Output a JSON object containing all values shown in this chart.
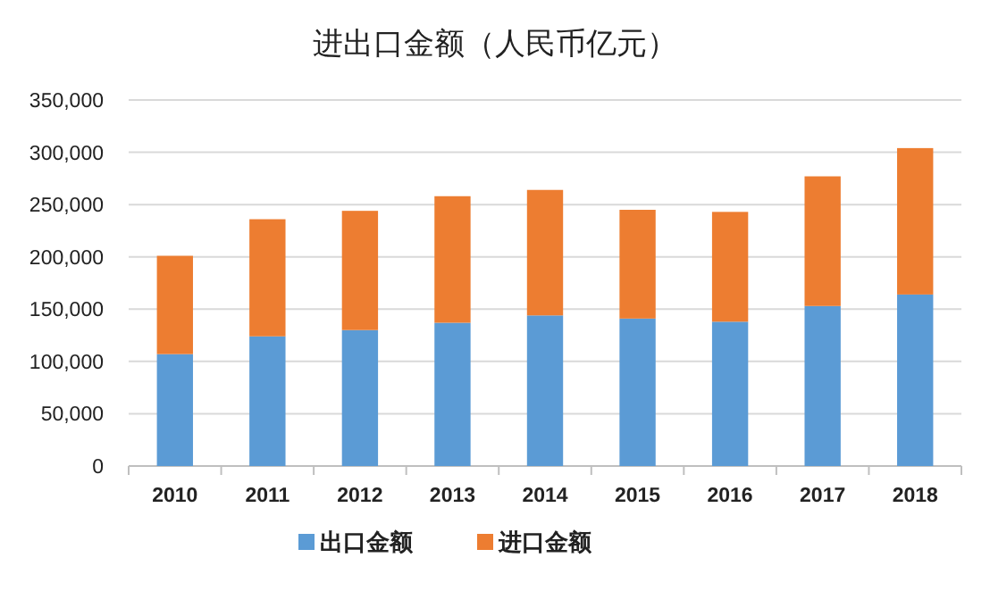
{
  "chart_data": {
    "type": "bar",
    "title": "进出口金额（人民币亿元）",
    "stacked": true,
    "categories": [
      "2010",
      "2011",
      "2012",
      "2013",
      "2014",
      "2015",
      "2016",
      "2017",
      "2018"
    ],
    "series": [
      {
        "name": "出口金额",
        "color": "#5b9bd5",
        "values": [
          107000,
          124000,
          130000,
          137000,
          144000,
          141000,
          138000,
          153000,
          164000
        ]
      },
      {
        "name": "进口金额",
        "color": "#ed7d31",
        "values": [
          94000,
          112000,
          114000,
          121000,
          120000,
          104000,
          105000,
          124000,
          140000
        ]
      }
    ],
    "ylim": [
      0,
      350000
    ],
    "yticks": [
      {
        "value": 0,
        "label": "0"
      },
      {
        "value": 50000,
        "label": "50,000"
      },
      {
        "value": 100000,
        "label": "100,000"
      },
      {
        "value": 150000,
        "label": "150,000"
      },
      {
        "value": 200000,
        "label": "200,000"
      },
      {
        "value": 250000,
        "label": "250,000"
      },
      {
        "value": 300000,
        "label": "300,000"
      },
      {
        "value": 350000,
        "label": "350,000"
      }
    ],
    "grid": "y",
    "legend": "bottom"
  }
}
